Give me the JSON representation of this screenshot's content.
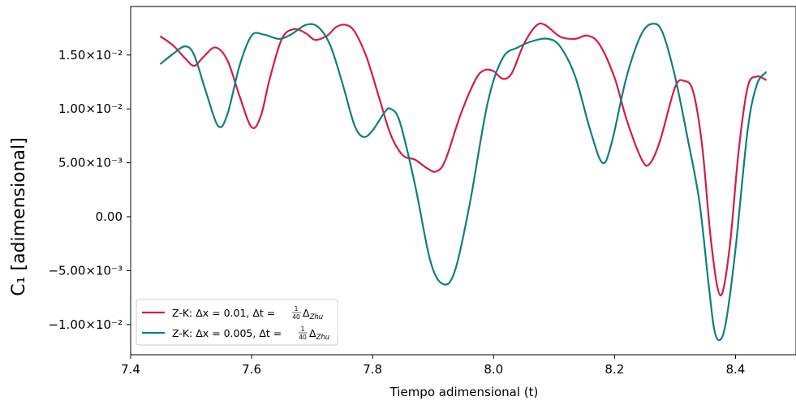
{
  "chart_data": {
    "type": "line",
    "title": "",
    "xlabel": "Tiempo adimensional (t)",
    "ylabel": "C₁ [adimensional]",
    "xlim": [
      7.4,
      8.5
    ],
    "ylim": [
      -0.0128,
      0.0195
    ],
    "x_ticks": [
      7.4,
      7.6,
      7.8,
      8.0,
      8.2,
      8.4
    ],
    "x_tick_labels": [
      "7.4",
      "7.6",
      "7.8",
      "8.0",
      "8.2",
      "8.4"
    ],
    "y_ticks": [
      -0.01,
      -0.005,
      0,
      0.005,
      0.01,
      0.015
    ],
    "y_tick_labels": [
      "−1.00×10⁻²",
      "−5.00×10⁻³",
      "0.00",
      "5.00×10⁻³",
      "1.00×10⁻²",
      "1.50×10⁻²"
    ],
    "grid": false,
    "legend": {
      "position": "lower-left"
    },
    "series": [
      {
        "name": "Z-K: Δx = 0.01, Δt = 1/40 Δ_Zhu",
        "label_prefix": "Z-K: Δx = 0.01, Δt = ",
        "frac_num": "1",
        "frac_den": "40",
        "label_suffix": "Δ",
        "label_sub": "Zhu",
        "color": "#d41c44",
        "points": [
          [
            7.45,
            0.0167
          ],
          [
            7.47,
            0.0159
          ],
          [
            7.49,
            0.0147
          ],
          [
            7.505,
            0.014
          ],
          [
            7.52,
            0.0148
          ],
          [
            7.54,
            0.0157
          ],
          [
            7.56,
            0.0145
          ],
          [
            7.58,
            0.0112
          ],
          [
            7.6,
            0.0083
          ],
          [
            7.615,
            0.0093
          ],
          [
            7.63,
            0.0128
          ],
          [
            7.65,
            0.0165
          ],
          [
            7.67,
            0.0174
          ],
          [
            7.69,
            0.017
          ],
          [
            7.705,
            0.0164
          ],
          [
            7.725,
            0.0168
          ],
          [
            7.74,
            0.0176
          ],
          [
            7.755,
            0.0178
          ],
          [
            7.77,
            0.0172
          ],
          [
            7.79,
            0.0148
          ],
          [
            7.81,
            0.0112
          ],
          [
            7.83,
            0.0076
          ],
          [
            7.85,
            0.0057
          ],
          [
            7.87,
            0.0053
          ],
          [
            7.89,
            0.0045
          ],
          [
            7.905,
            0.0042
          ],
          [
            7.92,
            0.0052
          ],
          [
            7.945,
            0.0094
          ],
          [
            7.97,
            0.0127
          ],
          [
            7.985,
            0.0136
          ],
          [
            8.0,
            0.0135
          ],
          [
            8.015,
            0.0128
          ],
          [
            8.03,
            0.0133
          ],
          [
            8.05,
            0.016
          ],
          [
            8.07,
            0.0177
          ],
          [
            8.085,
            0.0178
          ],
          [
            8.11,
            0.0167
          ],
          [
            8.135,
            0.0165
          ],
          [
            8.155,
            0.0168
          ],
          [
            8.175,
            0.016
          ],
          [
            8.2,
            0.0129
          ],
          [
            8.22,
            0.009
          ],
          [
            8.245,
            0.0053
          ],
          [
            8.258,
            0.0049
          ],
          [
            8.275,
            0.007
          ],
          [
            8.3,
            0.012
          ],
          [
            8.315,
            0.0126
          ],
          [
            8.33,
            0.0116
          ],
          [
            8.345,
            0.0065
          ],
          [
            8.36,
            -0.0025
          ],
          [
            8.375,
            -0.0073
          ],
          [
            8.39,
            -0.003
          ],
          [
            8.405,
            0.006
          ],
          [
            8.42,
            0.012
          ],
          [
            8.435,
            0.013
          ],
          [
            8.45,
            0.0127
          ]
        ]
      },
      {
        "name": "Z-K: Δx = 0.005, Δt = 1/40 Δ_Zhu",
        "label_prefix": "Z-K: Δx = 0.005, Δt = ",
        "frac_num": "1",
        "frac_den": "40",
        "label_suffix": "Δ",
        "label_sub": "Zhu",
        "color": "#0e7f7f",
        "points": [
          [
            7.45,
            0.0142
          ],
          [
            7.47,
            0.0151
          ],
          [
            7.49,
            0.0158
          ],
          [
            7.505,
            0.015
          ],
          [
            7.525,
            0.0115
          ],
          [
            7.545,
            0.0084
          ],
          [
            7.56,
            0.0095
          ],
          [
            7.58,
            0.014
          ],
          [
            7.6,
            0.0168
          ],
          [
            7.62,
            0.0169
          ],
          [
            7.645,
            0.0165
          ],
          [
            7.665,
            0.0169
          ],
          [
            7.69,
            0.0178
          ],
          [
            7.71,
            0.0176
          ],
          [
            7.73,
            0.0159
          ],
          [
            7.75,
            0.0124
          ],
          [
            7.77,
            0.0085
          ],
          [
            7.785,
            0.0074
          ],
          [
            7.8,
            0.008
          ],
          [
            7.82,
            0.0097
          ],
          [
            7.83,
            0.01
          ],
          [
            7.845,
            0.0088
          ],
          [
            7.87,
            0.003
          ],
          [
            7.895,
            -0.004
          ],
          [
            7.915,
            -0.0062
          ],
          [
            7.935,
            -0.0052
          ],
          [
            7.96,
            0.001
          ],
          [
            7.99,
            0.0105
          ],
          [
            8.015,
            0.0147
          ],
          [
            8.04,
            0.0157
          ],
          [
            8.065,
            0.0163
          ],
          [
            8.09,
            0.0165
          ],
          [
            8.11,
            0.0158
          ],
          [
            8.135,
            0.013
          ],
          [
            8.16,
            0.008
          ],
          [
            8.18,
            0.005
          ],
          [
            8.195,
            0.0068
          ],
          [
            8.22,
            0.013
          ],
          [
            8.245,
            0.017
          ],
          [
            8.265,
            0.0179
          ],
          [
            8.28,
            0.017
          ],
          [
            8.3,
            0.013
          ],
          [
            8.32,
            0.0075
          ],
          [
            8.34,
            0.0015
          ],
          [
            8.355,
            -0.006
          ],
          [
            8.365,
            -0.0105
          ],
          [
            8.375,
            -0.0114
          ],
          [
            8.385,
            -0.0095
          ],
          [
            8.4,
            -0.003
          ],
          [
            8.42,
            0.008
          ],
          [
            8.435,
            0.0122
          ],
          [
            8.45,
            0.0134
          ]
        ]
      }
    ]
  }
}
